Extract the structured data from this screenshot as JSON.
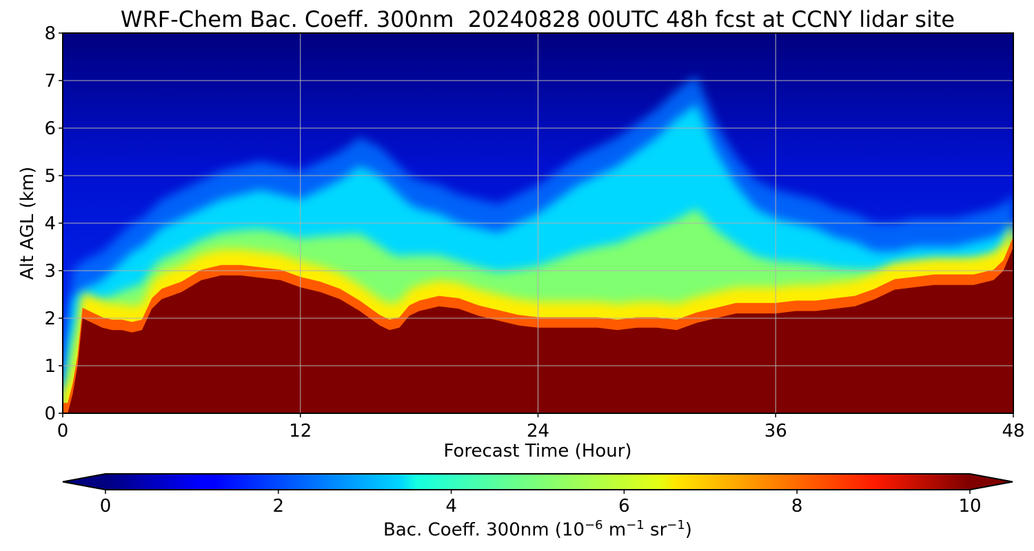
{
  "chart_data": {
    "type": "heatmap",
    "title": "WRF-Chem Bac. Coeff. 300nm  20240828 00UTC 48h fcst at CCNY lidar site",
    "xlabel": "Forecast Time (Hour)",
    "ylabel": "Alt AGL (km)",
    "xlim": [
      0,
      48
    ],
    "ylim": [
      0,
      8
    ],
    "xticks": [
      0,
      12,
      24,
      36,
      48
    ],
    "yticks": [
      0,
      1,
      2,
      3,
      4,
      5,
      6,
      7,
      8
    ],
    "grid": true,
    "colorbar": {
      "label_text": "Bac. Coeff. 300nm  (10",
      "label_exp1": "−6",
      "label_unit1": " m",
      "label_exp2": "−1",
      "label_unit2": " sr",
      "label_exp3": "−1",
      "label_close": ")",
      "range": [
        0,
        10
      ],
      "ticks": [
        0,
        2,
        4,
        6,
        8,
        10
      ],
      "extend": "both",
      "colormap": "jet"
    },
    "layer_tops": {
      "hours": [
        0,
        0.25,
        0.5,
        0.75,
        1,
        1.5,
        2,
        2.5,
        3,
        3.5,
        4,
        4.5,
        5,
        6,
        7,
        8,
        9,
        10,
        11,
        12,
        13,
        14,
        15,
        16,
        16.5,
        17,
        17.5,
        18,
        19,
        20,
        21,
        22,
        23,
        24,
        25,
        26,
        27,
        28,
        29,
        30,
        31,
        32,
        33,
        34,
        35,
        36,
        37,
        38,
        39,
        40,
        41,
        42,
        43,
        44,
        45,
        46,
        47,
        47.5,
        48
      ],
      "saturated_top_km": [
        0,
        0,
        0.4,
        1.0,
        2.0,
        1.9,
        1.8,
        1.75,
        1.75,
        1.7,
        1.75,
        2.2,
        2.4,
        2.55,
        2.8,
        2.9,
        2.9,
        2.85,
        2.8,
        2.65,
        2.55,
        2.4,
        2.15,
        1.85,
        1.75,
        1.8,
        2.05,
        2.15,
        2.25,
        2.2,
        2.05,
        1.95,
        1.85,
        1.8,
        1.8,
        1.8,
        1.8,
        1.75,
        1.8,
        1.8,
        1.75,
        1.9,
        2.0,
        2.1,
        2.1,
        2.1,
        2.15,
        2.15,
        2.2,
        2.25,
        2.4,
        2.6,
        2.65,
        2.7,
        2.7,
        2.7,
        2.8,
        3.0,
        3.5
      ],
      "aerosol_top_km": [
        0,
        1.5,
        2.4,
        2.5,
        2.6,
        2.7,
        2.8,
        3.0,
        3.2,
        3.4,
        3.5,
        3.7,
        3.9,
        4.1,
        4.3,
        4.5,
        4.6,
        4.7,
        4.6,
        4.5,
        4.7,
        4.9,
        5.2,
        5.0,
        4.8,
        4.6,
        4.4,
        4.3,
        4.2,
        4.0,
        3.9,
        3.8,
        4.0,
        4.2,
        4.5,
        4.8,
        5.0,
        5.2,
        5.5,
        5.8,
        6.2,
        6.5,
        5.5,
        4.8,
        4.3,
        4.1,
        4.0,
        3.9,
        3.7,
        3.6,
        3.4,
        3.4,
        3.5,
        3.5,
        3.5,
        3.6,
        3.7,
        3.8,
        4.0
      ]
    }
  }
}
